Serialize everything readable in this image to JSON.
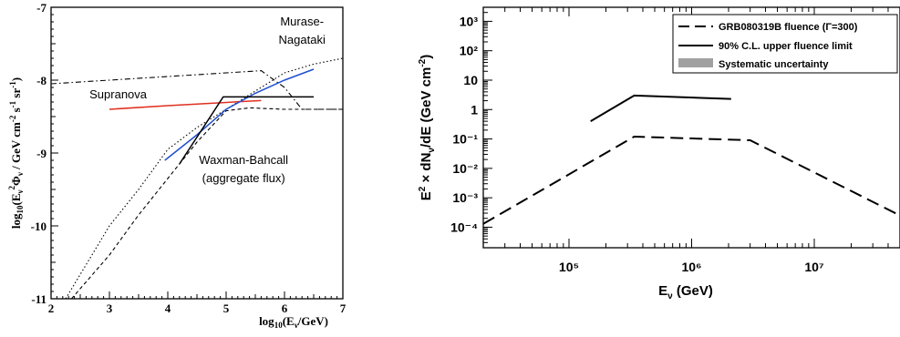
{
  "chart_data": [
    {
      "type": "line",
      "xlabel": "log10(Eν/GeV)",
      "ylabel": "log10(Eν²Φν / GeV cm⁻² s⁻¹ sr⁻¹)",
      "xlim": [
        2,
        7
      ],
      "ylim": [
        -11,
        -7
      ],
      "x_ticks": [
        "2",
        "3",
        "4",
        "5",
        "6",
        "7"
      ],
      "y_ticks": [
        "-11",
        "-10",
        "-9",
        "-8",
        "-7"
      ],
      "grid": false,
      "series": [
        {
          "color": "#000000",
          "dash": "dotted",
          "x": [
            2.25,
            2.55,
            3.0,
            3.5,
            4.0,
            4.5,
            5.0,
            5.5,
            6.0,
            6.5,
            7.0
          ],
          "y": [
            -11.0,
            -10.6,
            -10.0,
            -9.5,
            -8.95,
            -8.65,
            -8.4,
            -8.15,
            -7.9,
            -7.78,
            -7.7
          ]
        },
        {
          "color": "#000000",
          "dash": "dashdot",
          "x": [
            2.0,
            3.0,
            4.0,
            5.0,
            5.6,
            6.0,
            6.3,
            7.0
          ],
          "y": [
            -8.05,
            -8.0,
            -7.95,
            -7.9,
            -7.87,
            -8.1,
            -8.4,
            -8.4
          ]
        },
        {
          "color": "#000000",
          "dash": "dashed",
          "x": [
            2.35,
            3.0,
            3.5,
            4.0,
            4.5,
            5.0,
            5.4,
            6.0,
            7.0
          ],
          "y": [
            -11.0,
            -10.4,
            -9.85,
            -9.35,
            -8.85,
            -8.42,
            -8.38,
            -8.4,
            -8.4
          ]
        },
        {
          "color": "#e03020",
          "dash": "solid",
          "x": [
            3.0,
            4.0,
            5.6
          ],
          "y": [
            -8.4,
            -8.35,
            -8.28
          ]
        },
        {
          "color": "#2050d0",
          "dash": "solid",
          "x": [
            3.95,
            4.5,
            5.0,
            5.5,
            6.0,
            6.5
          ],
          "y": [
            -9.1,
            -8.75,
            -8.4,
            -8.18,
            -8.0,
            -7.85
          ]
        },
        {
          "color": "#000000",
          "dash": "solid",
          "x": [
            4.2,
            4.95,
            6.5
          ],
          "y": [
            -9.15,
            -8.23,
            -8.23
          ]
        }
      ],
      "annotations": [
        {
          "text": "Murase-",
          "x": 6.3,
          "y": -7.25
        },
        {
          "text": "Nagataki",
          "x": 6.3,
          "y": -7.5
        },
        {
          "text": "Supranova",
          "x": 3.15,
          "y": -8.25
        },
        {
          "text": "Waxman-Bahcall",
          "x": 5.3,
          "y": -9.15
        },
        {
          "text": "(aggregate flux)",
          "x": 5.3,
          "y": -9.4
        }
      ]
    },
    {
      "type": "line",
      "xlabel": "Eν (GeV)",
      "ylabel": "E² × dNν/dE (GeV cm⁻²)",
      "xscale": "log",
      "yscale": "log",
      "xlim": [
        20000,
        50000000
      ],
      "ylim": [
        2e-05,
        3000
      ],
      "x_ticks": [
        "10⁵",
        "10⁶",
        "10⁷"
      ],
      "y_ticks": [
        "10⁻⁴",
        "10⁻³",
        "10⁻²",
        "10⁻¹",
        "1",
        "10",
        "10²",
        "10³"
      ],
      "grid": false,
      "legend": "top-right",
      "series": [
        {
          "name": "GRB080319B fluence (Γ=300)",
          "color": "#000000",
          "dash": "dashed",
          "x": [
            20000,
            340000,
            3000000,
            50000000
          ],
          "y": [
            0.00013,
            0.12,
            0.09,
            0.00025
          ]
        },
        {
          "name": "90% C.L. upper fluence limit",
          "color": "#000000",
          "dash": "solid",
          "x": [
            150000,
            340000,
            2100000
          ],
          "y": [
            0.4,
            3.0,
            2.3
          ]
        },
        {
          "name": "Systematic uncertainty",
          "color": "#a0a0a0",
          "dash": "band",
          "x": [],
          "y": []
        }
      ]
    }
  ]
}
